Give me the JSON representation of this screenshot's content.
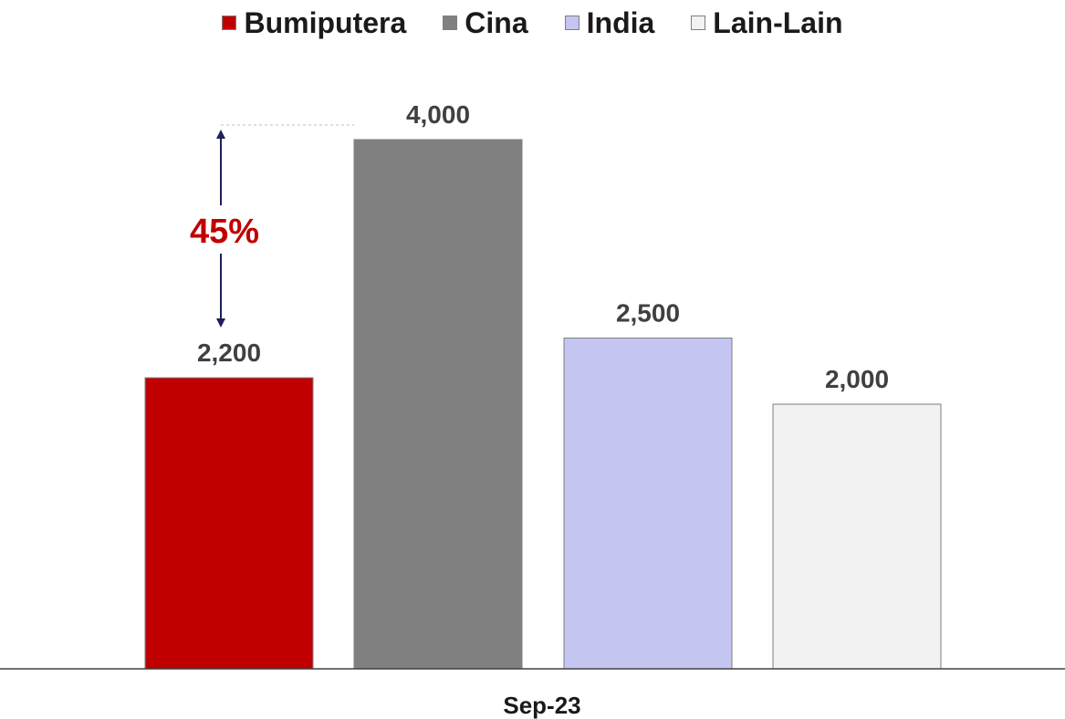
{
  "chart_data": {
    "type": "bar",
    "categories": [
      "Sep-23"
    ],
    "series": [
      {
        "name": "Bumiputera",
        "values": [
          2200
        ],
        "color": "#c00000"
      },
      {
        "name": "Cina",
        "values": [
          4000
        ],
        "color": "#808080"
      },
      {
        "name": "India",
        "values": [
          2500
        ],
        "color": "#c5c5f2"
      },
      {
        "name": "Lain-Lain",
        "values": [
          2000
        ],
        "color": "#f2f2f2"
      }
    ],
    "data_labels": [
      "2,200",
      "4,000",
      "2,500",
      "2,000"
    ],
    "annotation": {
      "text": "45%",
      "from_series": "Bumiputera",
      "to_series": "Cina",
      "color": "#c00000",
      "arrow_color": "#1f1f5c"
    },
    "title": "",
    "xlabel": "",
    "ylabel": "",
    "ylim": [
      0,
      4000
    ],
    "grid": false,
    "legend_position": "top-center"
  }
}
